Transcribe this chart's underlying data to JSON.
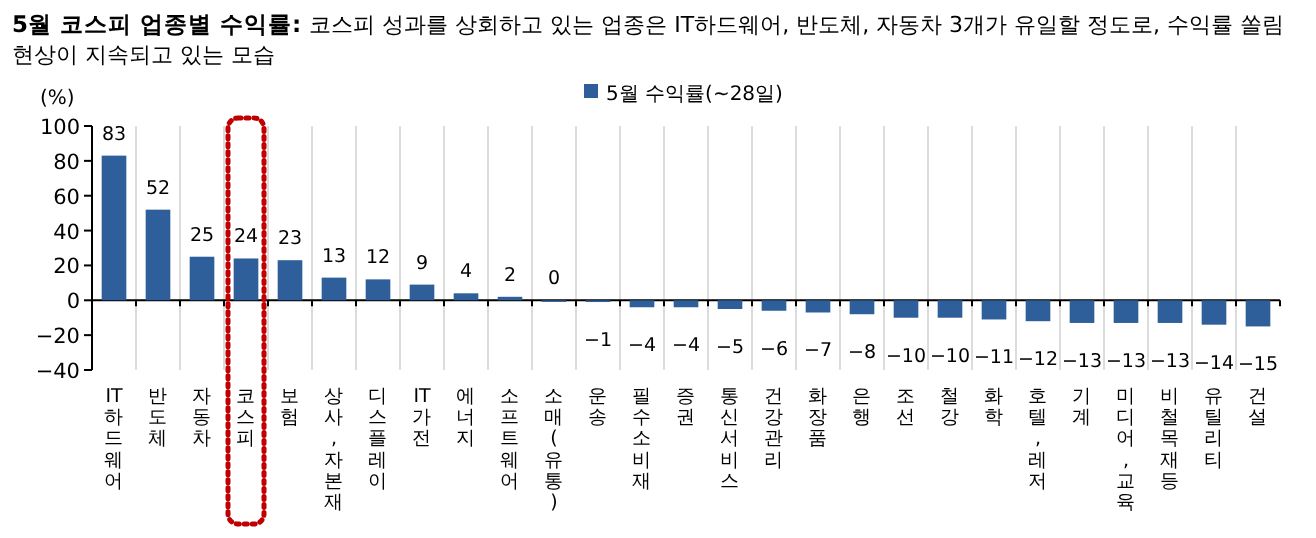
{
  "chart_data": {
    "type": "bar",
    "title": "5월 코스피 업종별 수익률:",
    "subtitle": "코스피 성과를 상회하고 있는 업종은 IT하드웨어, 반도체, 자동차 3개가 유일할 정도로, 수익률 쏠림 현상이 지속되고 있는 모습",
    "ylabel": "(%)",
    "categories": [
      "IT하드웨어",
      "반도체",
      "자동차",
      "코스피",
      "보험",
      "상사,자본재",
      "디스플레이",
      "IT가전",
      "에너지",
      "소프트웨어",
      "소매(유통)",
      "운송",
      "필수소비재",
      "증권",
      "통신서비스",
      "건강관리",
      "화장품",
      "은행",
      "조선",
      "철강",
      "화학",
      "호텔,레저",
      "기계",
      "미디어,교육",
      "비철목재등",
      "유틸리티",
      "건설"
    ],
    "series": [
      {
        "name": "5월 수익률(~28일)",
        "color": "#2e5f9a",
        "values": [
          83,
          52,
          25,
          24,
          23,
          13,
          12,
          9,
          4,
          2,
          0,
          -1,
          -4,
          -4,
          -5,
          -6,
          -7,
          -8,
          -10,
          -10,
          -11,
          -12,
          -13,
          -13,
          -13,
          -14,
          -15
        ]
      }
    ],
    "ylim": [
      -40,
      100
    ],
    "yticks": [
      -40,
      -20,
      0,
      20,
      40,
      60,
      80,
      100
    ],
    "data_labels": true,
    "legend": "top right",
    "grid": "x"
  }
}
